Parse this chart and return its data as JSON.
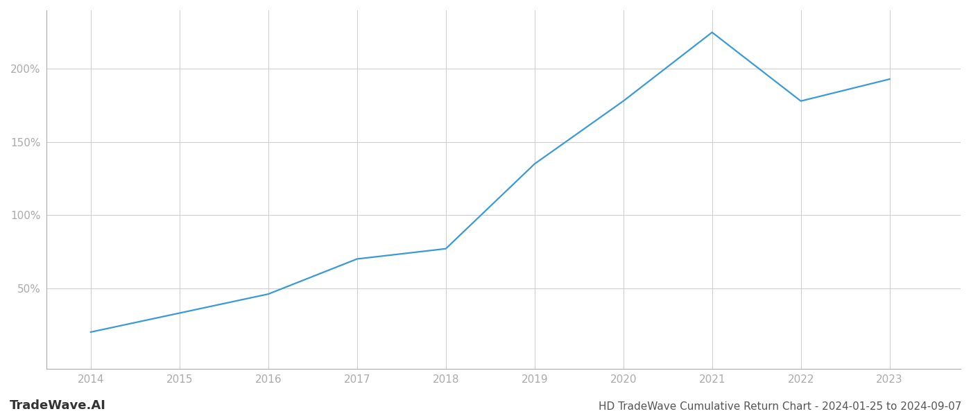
{
  "x_years": [
    2014,
    2015,
    2016,
    2017,
    2018,
    2019,
    2020,
    2021,
    2022,
    2023
  ],
  "y_values": [
    20,
    33,
    46,
    70,
    77,
    135,
    178,
    225,
    178,
    193
  ],
  "line_color": "#3a9ad9",
  "line_width": 1.6,
  "background_color": "#ffffff",
  "grid_color": "#cccccc",
  "ylabel_ticks": [
    50,
    100,
    150,
    200
  ],
  "ylabel_tick_labels": [
    "50%",
    "100%",
    "150%",
    "200%"
  ],
  "ylim": [
    -5,
    240
  ],
  "xlim": [
    2013.5,
    2023.8
  ],
  "title": "HD TradeWave Cumulative Return Chart - 2024-01-25 to 2024-09-07",
  "watermark": "TradeWave.AI",
  "tick_color": "#aaaaaa",
  "spine_color": "#333333",
  "title_color": "#555555",
  "watermark_color": "#333333",
  "title_fontsize": 11,
  "watermark_fontsize": 13,
  "tick_fontsize": 11
}
